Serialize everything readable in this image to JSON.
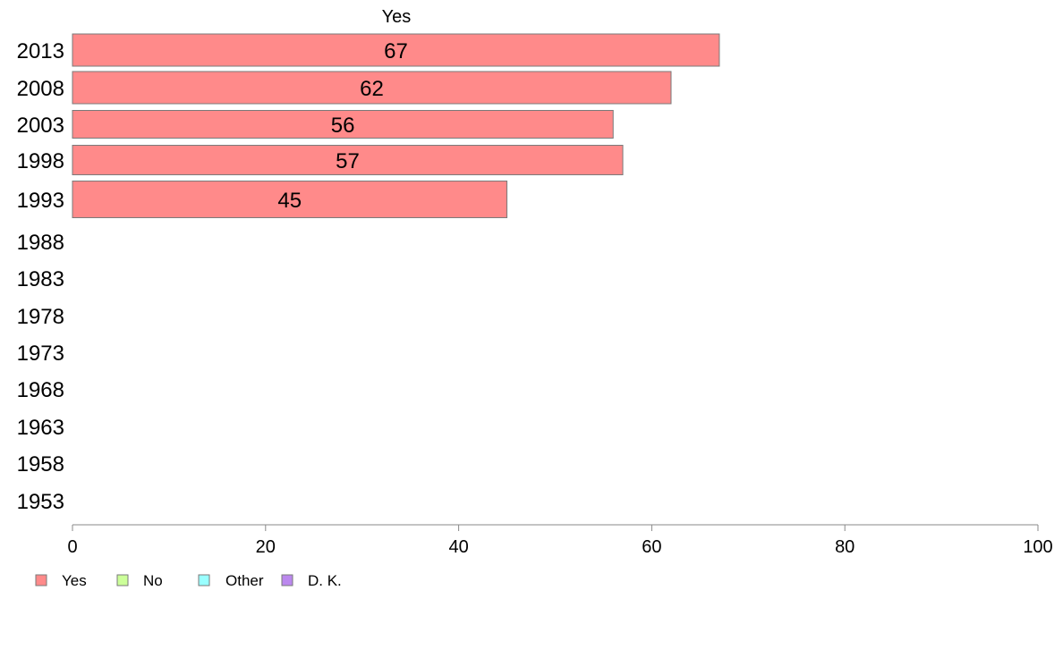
{
  "chart_data": {
    "type": "bar",
    "orientation": "horizontal",
    "stacked": true,
    "title": "",
    "xlabel": "",
    "ylabel": "",
    "xlim": [
      0,
      100
    ],
    "x_ticks": [
      0,
      20,
      40,
      60,
      80,
      100
    ],
    "categories": [
      "2013",
      "2008",
      "2003",
      "1998",
      "1993",
      "1988",
      "1983",
      "1978",
      "1973",
      "1968",
      "1963",
      "1958",
      "1953"
    ],
    "series": [
      {
        "name": "Yes",
        "color": "#ff8a8a",
        "values": [
          67,
          62,
          56,
          57,
          45,
          null,
          null,
          null,
          null,
          null,
          null,
          null,
          null
        ]
      },
      {
        "name": "No",
        "color": "#ccff99",
        "values": [
          null,
          null,
          null,
          null,
          null,
          null,
          null,
          null,
          null,
          null,
          null,
          null,
          null
        ]
      },
      {
        "name": "Other",
        "color": "#99ffff",
        "values": [
          null,
          null,
          null,
          null,
          null,
          null,
          null,
          null,
          null,
          null,
          null,
          null,
          null
        ]
      },
      {
        "name": "D. K.",
        "color": "#bb88ee",
        "values": [
          null,
          null,
          null,
          null,
          null,
          null,
          null,
          null,
          null,
          null,
          null,
          null,
          null
        ]
      }
    ],
    "header_label": "Yes",
    "grid": false,
    "legend_position": "bottom-left"
  }
}
